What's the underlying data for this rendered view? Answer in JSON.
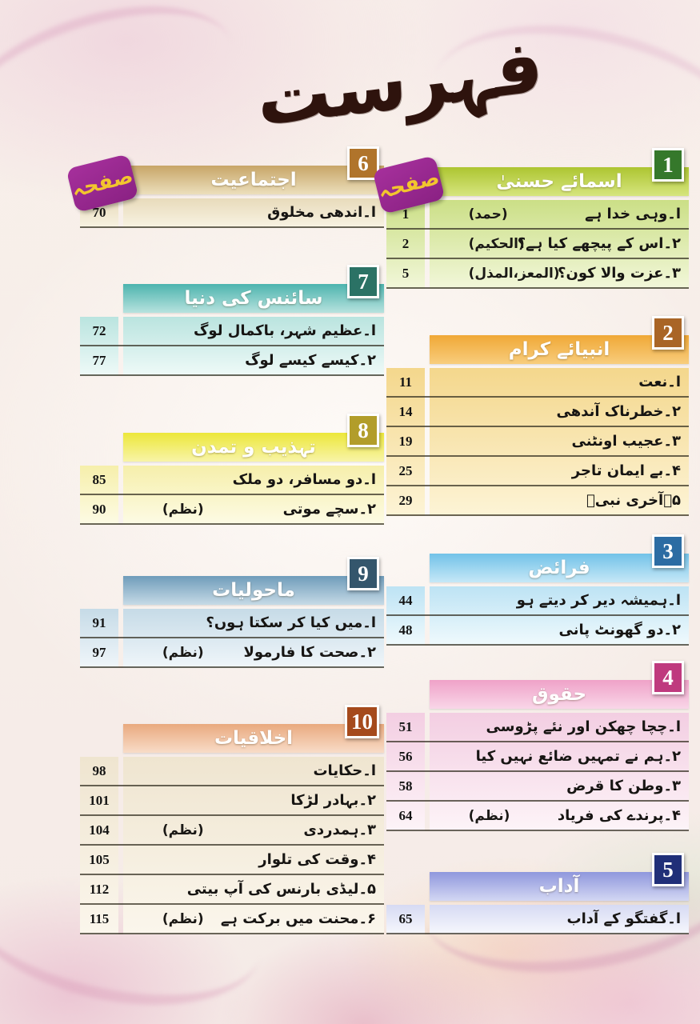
{
  "page_title": "فہرست",
  "page_label": "صفحہ",
  "sections": [
    {
      "number": "1",
      "title": "اسمائے حسنیٰ",
      "colors": {
        "badge": "#35782b",
        "header_top": "#adc531",
        "header_bottom": "#d6e57e",
        "row_top": "#cbdf86",
        "row_bottom": "#f2f7da"
      },
      "items": [
        {
          "page": "1",
          "title": "ا۔وہی خدا ہے",
          "paren": "(حمد)"
        },
        {
          "page": "2",
          "title": "۲۔اس کے پیچھے کیا ہے؟",
          "paren": "(الحکیم)"
        },
        {
          "page": "5",
          "title": "۳۔عزت والا کون؟",
          "paren": "(المعز،المذل)"
        }
      ]
    },
    {
      "number": "2",
      "title": "انبیائے کرام",
      "colors": {
        "badge": "#a96526",
        "header_top": "#f0a836",
        "header_bottom": "#f8cd7d",
        "row_top": "#f4d78c",
        "row_bottom": "#fdf4d6"
      },
      "items": [
        {
          "page": "11",
          "title": "ا۔نعت"
        },
        {
          "page": "14",
          "title": "۲۔خطرناک آندھی"
        },
        {
          "page": "19",
          "title": "۳۔عجیب اونٹنی"
        },
        {
          "page": "25",
          "title": "۴۔بے ایمان تاجر"
        },
        {
          "page": "29",
          "title": "۵۔آخری نبیؐ"
        }
      ]
    },
    {
      "number": "3",
      "title": "فرائض",
      "colors": {
        "badge": "#2c6ca3",
        "header_top": "#72c2e8",
        "header_bottom": "#c6e8f7",
        "row_top": "#bde3f4",
        "row_bottom": "#f0fafd"
      },
      "items": [
        {
          "page": "44",
          "title": "ا۔ہمیشہ دیر کر دیتے ہو"
        },
        {
          "page": "48",
          "title": "۲۔دو گھونٹ پانی"
        }
      ]
    },
    {
      "number": "4",
      "title": "حقوق",
      "colors": {
        "badge": "#bf3a7e",
        "header_top": "#efa2c8",
        "header_bottom": "#f9d6e8",
        "row_top": "#f3cee2",
        "row_bottom": "#fdf4f8"
      },
      "items": [
        {
          "page": "51",
          "title": "ا۔چچا چھکن اور نئے پڑوسی"
        },
        {
          "page": "56",
          "title": "۲۔ہم نے تمہیں ضائع نہیں کیا"
        },
        {
          "page": "58",
          "title": "۳۔وطن کا قرض"
        },
        {
          "page": "64",
          "title": "۴۔پرندے کی فریاد",
          "paren": "(نظم)"
        }
      ]
    },
    {
      "number": "5",
      "title": "آداب",
      "colors": {
        "badge": "#202f78",
        "header_top": "#8f97dd",
        "header_bottom": "#d3d7f3",
        "row_top": "#d6daf3",
        "row_bottom": "#f7f8fd"
      },
      "items": [
        {
          "page": "65",
          "title": "ا۔گفتگو کے آداب"
        }
      ]
    },
    {
      "number": "6",
      "title": "اجتماعیت",
      "colors": {
        "badge": "#b0742b",
        "header_top": "#c7a567",
        "header_bottom": "#ecdfbc",
        "row_top": "#e8dbbb",
        "row_bottom": "#f8f3e3"
      },
      "items": [
        {
          "page": "70",
          "title": "ا۔اندھی مخلوق"
        }
      ]
    },
    {
      "number": "7",
      "title": "سائنس کی دنیا",
      "colors": {
        "badge": "#2b7265",
        "header_top": "#4db4ae",
        "header_bottom": "#b7e2de",
        "row_top": "#bae4df",
        "row_bottom": "#effaf8"
      },
      "items": [
        {
          "page": "72",
          "title": "ا۔عظیم شہر، باکمال لوگ"
        },
        {
          "page": "77",
          "title": "۲۔کیسے کیسے لوگ"
        }
      ]
    },
    {
      "number": "8",
      "title": "تہذیب و تمدن",
      "colors": {
        "badge": "#b29d2a",
        "header_top": "#ece73a",
        "header_bottom": "#f8f4a8",
        "row_top": "#f6efab",
        "row_bottom": "#fdfbe5"
      },
      "items": [
        {
          "page": "85",
          "title": "ا۔دو مسافر، دو ملک"
        },
        {
          "page": "90",
          "title": "۲۔سچے موتی",
          "paren": "(نظم)"
        }
      ]
    },
    {
      "number": "9",
      "title": "ماحولیات",
      "colors": {
        "badge": "#34566c",
        "header_top": "#6f9cba",
        "header_bottom": "#c6dae6",
        "row_top": "#c6dbe7",
        "row_bottom": "#f0f6fa"
      },
      "items": [
        {
          "page": "91",
          "title": "ا۔میں کیا کر سکتا ہوں؟"
        },
        {
          "page": "97",
          "title": "۲۔صحت کا فارمولا",
          "paren": "(نظم)"
        }
      ]
    },
    {
      "number": "10",
      "title": "اخلاقیات",
      "colors": {
        "badge": "#a54a1c",
        "header_top": "#e9a97e",
        "header_bottom": "#f8dcc8",
        "row_top": "#efe5d0",
        "row_bottom": "#fbf6ec"
      },
      "items": [
        {
          "page": "98",
          "title": "ا۔حکایات"
        },
        {
          "page": "101",
          "title": "۲۔بہادر لڑکا"
        },
        {
          "page": "104",
          "title": "۳۔ہمدردی",
          "paren": "(نظم)"
        },
        {
          "page": "105",
          "title": "۴۔وقت کی تلوار"
        },
        {
          "page": "112",
          "title": "۵۔لیڈی بارنس کی آپ بیتی"
        },
        {
          "page": "115",
          "title": "۶۔محنت میں برکت ہے",
          "paren": "(نظم)"
        }
      ]
    }
  ]
}
